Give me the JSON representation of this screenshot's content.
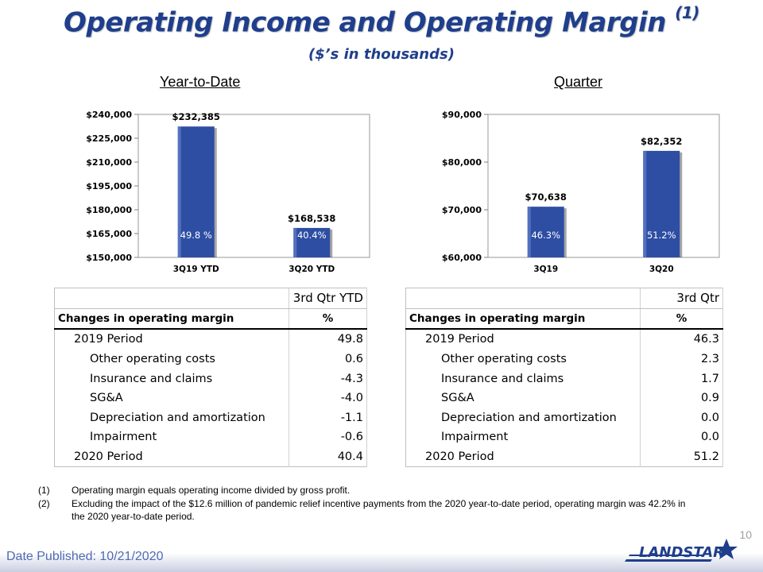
{
  "title": "Operating Income and Operating Margin",
  "title_sup": "(1)",
  "subtitle": "($’s in thousands)",
  "ytd_heading": "Year-to-Date",
  "quarter_heading": "Quarter",
  "chart_data": [
    {
      "type": "bar",
      "categories": [
        "3Q19 YTD",
        "3Q20 YTD"
      ],
      "values": [
        232385,
        168538
      ],
      "value_labels": [
        "$232,385",
        "$168,538"
      ],
      "inner_labels": [
        "49.8 %",
        "40.4%"
      ],
      "ylim": [
        150000,
        240000
      ],
      "yticks": [
        150000,
        165000,
        180000,
        195000,
        210000,
        225000,
        240000
      ],
      "ytick_labels": [
        "$150,000",
        "$165,000",
        "$180,000",
        "$195,000",
        "$210,000",
        "$225,000",
        "$240,000"
      ],
      "bar_color": "#2e4ea3"
    },
    {
      "type": "bar",
      "categories": [
        "3Q19",
        "3Q20"
      ],
      "values": [
        70638,
        82352
      ],
      "value_labels": [
        "$70,638",
        "$82,352"
      ],
      "inner_labels": [
        "46.3%",
        "51.2%"
      ],
      "ylim": [
        60000,
        90000
      ],
      "yticks": [
        60000,
        70000,
        80000,
        90000
      ],
      "ytick_labels": [
        "$60,000",
        "$70,000",
        "$80,000",
        "$90,000"
      ],
      "bar_color": "#2e4ea3"
    }
  ],
  "ytd_table": {
    "header": "3rd Qtr YTD",
    "sub_label": "Changes in operating margin",
    "sub_unit": "%",
    "rows": [
      {
        "label": "2019 Period",
        "value": "49.8"
      },
      {
        "label": "Other operating costs",
        "value": "0.6"
      },
      {
        "label": "Insurance and claims",
        "value": "-4.3"
      },
      {
        "label": "SG&A",
        "value": "-4.0"
      },
      {
        "label": "Depreciation and amortization",
        "value": "-1.1"
      },
      {
        "label": "Impairment",
        "value": "-0.6"
      },
      {
        "label": "2020 Period",
        "value": "40.4"
      }
    ]
  },
  "qtr_table": {
    "header": "3rd Qtr",
    "sub_label": "Changes in operating margin",
    "sub_unit": "%",
    "rows": [
      {
        "label": "2019 Period",
        "value": "46.3"
      },
      {
        "label": "Other operating costs",
        "value": "2.3"
      },
      {
        "label": "Insurance and claims",
        "value": "1.7"
      },
      {
        "label": "SG&A",
        "value": "0.9"
      },
      {
        "label": "Depreciation and amortization",
        "value": "0.0"
      },
      {
        "label": "Impairment",
        "value": "0.0"
      },
      {
        "label": "2020 Period",
        "value": "51.2"
      }
    ]
  },
  "footnotes": [
    {
      "num": "(1)",
      "text": "Operating margin equals operating income divided by gross profit."
    },
    {
      "num": "(2)",
      "text": "Excluding the impact of the $12.6 million of pandemic relief incentive payments from the 2020 year-to-date period, operating margin was 42.2% in the 2020 year-to-date period."
    }
  ],
  "page_number": "10",
  "date_published": "Date Published:  10/21/2020",
  "logo_text": "LANDSTAR",
  "colors": {
    "title": "#1f3e8c",
    "bar": "#2e4ea3",
    "footer_text": "#4f6ab5"
  }
}
